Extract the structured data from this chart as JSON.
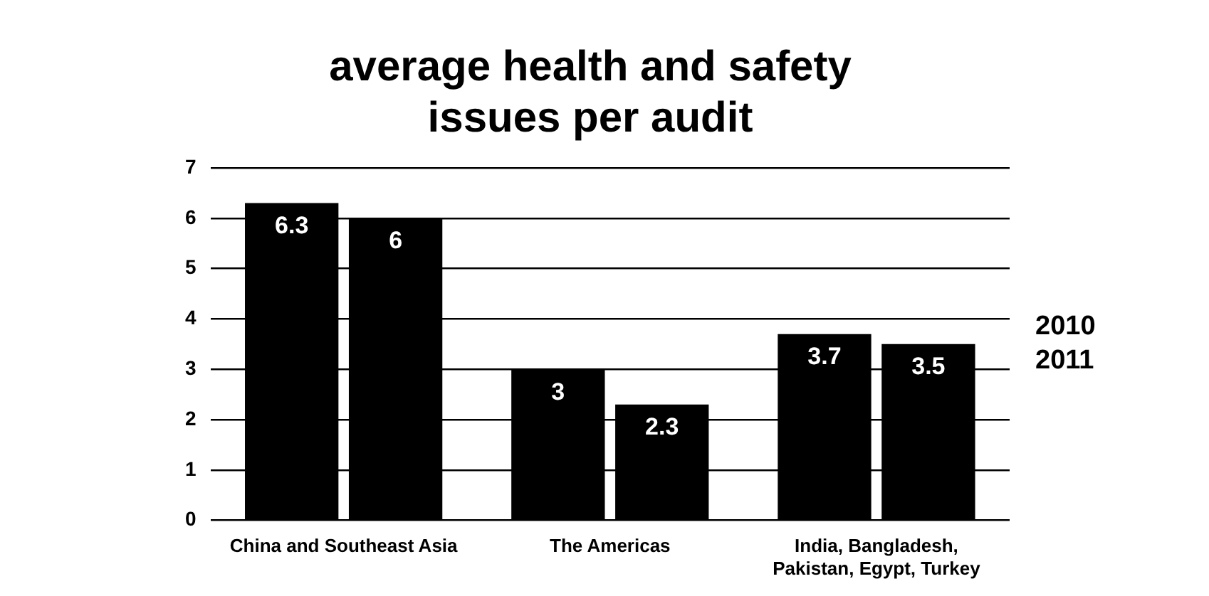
{
  "chart_data": {
    "type": "bar",
    "title": "average health and safety issues per audit",
    "categories": [
      "China and Southeast Asia",
      "The Americas",
      "India, Bangladesh, Pakistan, Egypt, Turkey"
    ],
    "series": [
      {
        "name": "2010",
        "color": "#000000",
        "values": [
          6.3,
          3,
          3.7
        ]
      },
      {
        "name": "2011",
        "color": "#000000",
        "values": [
          6,
          2.3,
          3.5
        ]
      }
    ],
    "ylim": [
      0,
      7
    ],
    "yticks": [
      0,
      1,
      2,
      3,
      4,
      5,
      6,
      7
    ],
    "grid": "y",
    "legend": "right",
    "data_labels": true
  }
}
